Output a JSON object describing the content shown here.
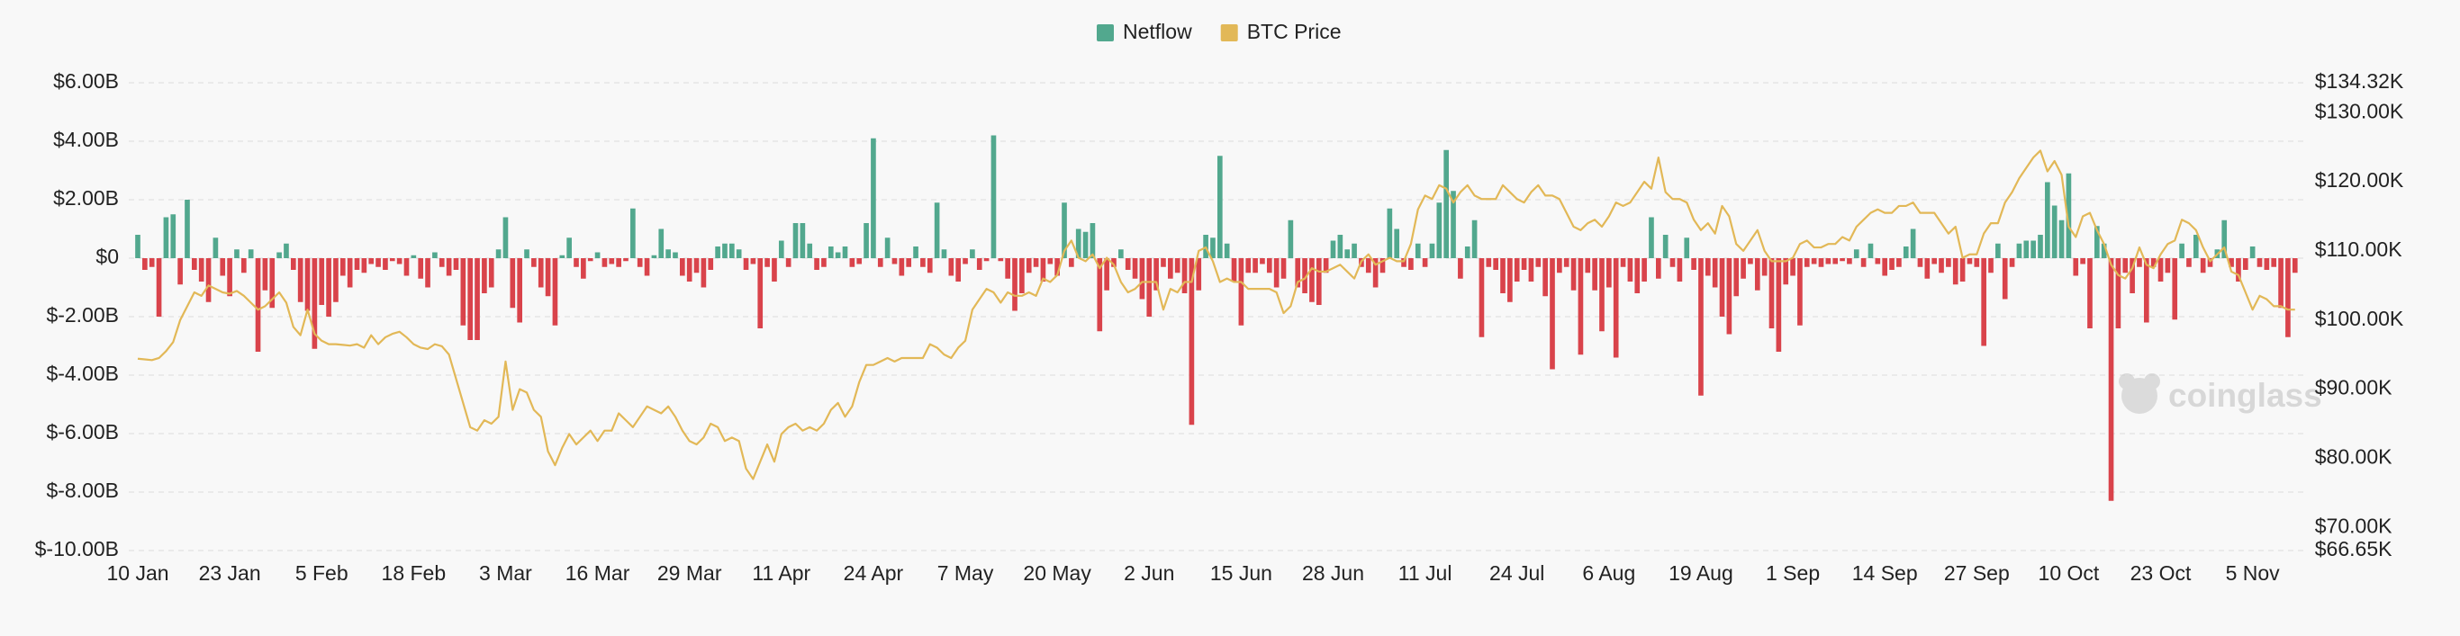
{
  "chart_data": {
    "type": "bar",
    "watermark": "coinglass",
    "grid": true,
    "categories": [
      "10 Jan",
      null,
      null,
      null,
      null,
      null,
      null,
      null,
      null,
      null,
      null,
      null,
      null,
      "23 Jan",
      null,
      null,
      null,
      null,
      null,
      null,
      null,
      null,
      null,
      null,
      null,
      null,
      "5 Feb",
      null,
      null,
      null,
      null,
      null,
      null,
      null,
      null,
      null,
      null,
      null,
      null,
      "18 Feb",
      null,
      null,
      null,
      null,
      null,
      null,
      null,
      null,
      null,
      null,
      null,
      null,
      "3 Mar",
      null,
      null,
      null,
      null,
      null,
      null,
      null,
      null,
      null,
      null,
      null,
      null,
      "16 Mar",
      null,
      null,
      null,
      null,
      null,
      null,
      null,
      null,
      null,
      null,
      null,
      null,
      "29 Mar",
      null,
      null,
      null,
      null,
      null,
      null,
      null,
      null,
      null,
      null,
      null,
      null,
      "11 Apr",
      null,
      null,
      null,
      null,
      null,
      null,
      null,
      null,
      null,
      null,
      null,
      null,
      "24 Apr",
      null,
      null,
      null,
      null,
      null,
      null,
      null,
      null,
      null,
      null,
      null,
      null,
      "7 May",
      null,
      null,
      null,
      null,
      null,
      null,
      null,
      null,
      null,
      null,
      null,
      null,
      "20 May",
      null,
      null,
      null,
      null,
      null,
      null,
      null,
      null,
      null,
      null,
      null,
      null,
      "2 Jun",
      null,
      null,
      null,
      null,
      null,
      null,
      null,
      null,
      null,
      null,
      null,
      null,
      "15 Jun",
      null,
      null,
      null,
      null,
      null,
      null,
      null,
      null,
      null,
      null,
      null,
      null,
      "28 Jun",
      null,
      null,
      null,
      null,
      null,
      null,
      null,
      null,
      null,
      null,
      null,
      null,
      "11 Jul",
      null,
      null,
      null,
      null,
      null,
      null,
      null,
      null,
      null,
      null,
      null,
      null,
      "24 Jul",
      null,
      null,
      null,
      null,
      null,
      null,
      null,
      null,
      null,
      null,
      null,
      null,
      "6 Aug",
      null,
      null,
      null,
      null,
      null,
      null,
      null,
      null,
      null,
      null,
      null,
      null,
      "19 Aug",
      null,
      null,
      null,
      null,
      null,
      null,
      null,
      null,
      null,
      null,
      null,
      null,
      "1 Sep",
      null,
      null,
      null,
      null,
      null,
      null,
      null,
      null,
      null,
      null,
      null,
      null,
      "14 Sep",
      null,
      null,
      null,
      null,
      null,
      null,
      null,
      null,
      null,
      null,
      null,
      null,
      "27 Sep",
      null,
      null,
      null,
      null,
      null,
      null,
      null,
      null,
      null,
      null,
      null,
      null,
      "10 Oct",
      null,
      null,
      null,
      null,
      null,
      null,
      null,
      null,
      null,
      null,
      null,
      null,
      "23 Oct",
      null,
      null,
      null,
      null,
      null,
      null,
      null,
      null,
      null,
      null,
      null,
      null,
      "5 Nov",
      null,
      null,
      null,
      null,
      null,
      null
    ],
    "series": [
      {
        "name": "Netflow",
        "type": "bar",
        "color": "#52a88e",
        "negative_color": "#d9434b",
        "values": [
          0.8,
          -0.4,
          -0.3,
          -2.0,
          1.4,
          1.5,
          -0.9,
          2.0,
          -0.4,
          -0.8,
          -1.5,
          0.7,
          -0.6,
          -1.3,
          0.3,
          -0.5,
          0.3,
          -3.2,
          -1.1,
          -1.7,
          0.2,
          0.5,
          -0.4,
          -1.5,
          -1.8,
          -3.1,
          -1.6,
          -2.0,
          -1.5,
          -0.6,
          -1.0,
          -0.4,
          -0.5,
          -0.2,
          -0.3,
          -0.4,
          -0.1,
          -0.2,
          -0.6,
          0.1,
          -0.7,
          -1.0,
          0.2,
          -0.3,
          -0.6,
          -0.4,
          -2.3,
          -2.8,
          -2.8,
          -1.2,
          -1.0,
          0.3,
          1.4,
          -1.7,
          -2.2,
          0.3,
          -0.3,
          -1.0,
          -1.3,
          -2.3,
          0.1,
          0.7,
          -0.3,
          -0.7,
          -0.1,
          0.2,
          -0.3,
          -0.2,
          -0.3,
          -0.1,
          1.7,
          -0.3,
          -0.6,
          0.1,
          1.0,
          0.3,
          0.2,
          -0.6,
          -0.8,
          -0.5,
          -1.0,
          -0.4,
          0.4,
          0.5,
          0.5,
          0.3,
          -0.4,
          -0.2,
          -2.4,
          -0.3,
          -0.8,
          0.6,
          -0.3,
          1.2,
          1.2,
          0.5,
          -0.4,
          -0.3,
          0.4,
          0.2,
          0.4,
          -0.3,
          -0.2,
          1.2,
          4.1,
          -0.3,
          0.7,
          -0.2,
          -0.6,
          -0.3,
          0.4,
          -0.3,
          -0.5,
          1.9,
          0.3,
          -0.6,
          -0.8,
          -0.2,
          0.3,
          -0.4,
          -0.1,
          4.2,
          -0.1,
          -0.7,
          -1.8,
          -1.2,
          -0.5,
          -0.3,
          -0.8,
          -0.2,
          -0.6,
          1.9,
          -0.3,
          1.0,
          0.9,
          1.2,
          -2.5,
          -1.1,
          -0.3,
          0.3,
          -0.4,
          -0.7,
          -1.4,
          -2.0,
          -1.1,
          -0.3,
          -0.7,
          -0.5,
          -1.2,
          -5.7,
          -1.1,
          0.8,
          0.7,
          3.5,
          0.5,
          -0.8,
          -2.3,
          -0.5,
          -0.5,
          -0.2,
          -0.5,
          -1.0,
          -0.7,
          1.3,
          -1.0,
          -1.2,
          -1.5,
          -1.6,
          -0.5,
          0.6,
          0.8,
          0.3,
          0.5,
          -0.3,
          -0.5,
          -1.0,
          -0.5,
          1.7,
          1.0,
          -0.3,
          -0.4,
          0.5,
          -0.3,
          0.5,
          1.9,
          3.7,
          2.3,
          -0.7,
          0.4,
          1.3,
          -2.7,
          -0.3,
          -0.4,
          -1.2,
          -1.5,
          -0.8,
          -0.4,
          -0.8,
          -0.3,
          -1.3,
          -3.8,
          -0.5,
          -0.3,
          -1.1,
          -3.3,
          -0.5,
          -1.1,
          -2.5,
          -1.0,
          -3.4,
          -0.3,
          -0.8,
          -1.2,
          -0.8,
          1.4,
          -0.7,
          0.8,
          -0.3,
          -0.8,
          0.7,
          -0.4,
          -4.7,
          -0.6,
          -1.0,
          -2.0,
          -2.6,
          -1.3,
          -0.7,
          -0.2,
          -1.1,
          -0.6,
          -2.4,
          -3.2,
          -0.9,
          -0.6,
          -2.3,
          -0.3,
          -0.2,
          -0.3,
          -0.2,
          -0.2,
          -0.1,
          -0.2,
          0.3,
          -0.3,
          0.5,
          -0.2,
          -0.6,
          -0.4,
          -0.3,
          0.4,
          1.0,
          -0.3,
          -0.7,
          -0.2,
          -0.5,
          -0.3,
          -0.9,
          -0.8,
          -0.2,
          -0.3,
          -3.0,
          -0.5,
          0.5,
          -1.4,
          -0.3,
          0.5,
          0.6,
          0.6,
          0.8,
          2.6,
          1.8,
          1.3,
          2.9,
          -0.6,
          -0.2,
          -2.4,
          1.1,
          0.5,
          -8.3,
          -2.4,
          -0.5,
          -1.2,
          -0.3,
          -2.2,
          -0.3,
          -0.8,
          -0.5,
          -2.1,
          0.5,
          -0.3,
          0.8,
          -0.5,
          -0.3,
          0.3,
          1.3,
          -0.3,
          -0.8,
          -0.4,
          0.4,
          -0.3,
          -0.4,
          -0.3,
          -1.7,
          -2.7,
          -0.5
        ]
      },
      {
        "name": "BTC Price",
        "type": "line",
        "axis": "y2",
        "color": "#e2b857",
        "values": [
          94.4,
          94.3,
          94.2,
          94.5,
          95.5,
          96.8,
          100.0,
          102.0,
          104.0,
          103.5,
          105.0,
          104.5,
          104.0,
          103.8,
          104.2,
          103.5,
          102.5,
          101.5,
          102.0,
          103.0,
          104.0,
          102.5,
          99.0,
          97.8,
          101.5,
          98.0,
          97.0,
          96.5,
          96.5,
          96.4,
          96.3,
          96.5,
          96.0,
          97.8,
          96.5,
          97.5,
          98.0,
          98.3,
          97.5,
          96.5,
          96.0,
          95.8,
          96.5,
          96.2,
          95.0,
          91.5,
          88.0,
          84.5,
          84.0,
          85.5,
          85.0,
          86.0,
          94.0,
          87.0,
          90.0,
          89.5,
          87.0,
          86.0,
          81.0,
          79.0,
          81.5,
          83.5,
          82.0,
          83.0,
          84.0,
          82.5,
          84.0,
          84.0,
          86.5,
          85.5,
          84.5,
          86.0,
          87.5,
          87.0,
          86.5,
          87.5,
          86.0,
          84.0,
          82.5,
          82.0,
          83.0,
          85.0,
          84.5,
          82.5,
          83.0,
          82.5,
          78.5,
          77.0,
          79.5,
          82.0,
          79.5,
          83.5,
          84.5,
          85.0,
          84.0,
          84.5,
          84.0,
          85.0,
          87.0,
          88.0,
          86.0,
          87.5,
          91.0,
          93.5,
          93.5,
          94.0,
          94.5,
          94.0,
          94.5,
          94.5,
          94.5,
          94.5,
          96.5,
          96.0,
          95.0,
          94.5,
          96.0,
          97.0,
          101.5,
          103.0,
          104.5,
          104.0,
          102.5,
          104.0,
          103.5,
          103.5,
          104.0,
          103.5,
          106.0,
          105.5,
          106.5,
          110.0,
          111.5,
          109.0,
          108.5,
          109.5,
          107.5,
          109.0,
          108.0,
          105.5,
          104.0,
          104.5,
          105.5,
          105.5,
          105.5,
          101.5,
          104.5,
          104.0,
          105.5,
          105.5,
          110.0,
          110.5,
          108.5,
          105.5,
          106.0,
          105.5,
          105.5,
          104.5,
          104.5,
          104.5,
          104.5,
          104.0,
          101.0,
          102.0,
          105.5,
          106.0,
          107.5,
          107.0,
          107.0,
          107.5,
          108.0,
          107.0,
          106.0,
          108.5,
          109.5,
          108.0,
          108.5,
          109.0,
          108.5,
          108.5,
          111.0,
          116.0,
          118.0,
          117.5,
          119.5,
          119.0,
          117.0,
          118.5,
          119.5,
          118.0,
          117.5,
          117.5,
          117.5,
          119.5,
          118.5,
          117.5,
          117.0,
          118.5,
          119.5,
          118.0,
          118.0,
          117.5,
          115.5,
          113.5,
          113.0,
          114.0,
          114.5,
          113.5,
          115.0,
          117.0,
          116.5,
          117.0,
          118.5,
          120.0,
          119.0,
          123.5,
          118.5,
          117.5,
          117.5,
          117.0,
          114.5,
          113.0,
          114.0,
          112.5,
          116.5,
          115.0,
          111.0,
          110.0,
          111.5,
          113.0,
          110.0,
          108.5,
          108.5,
          108.5,
          109.0,
          111.0,
          111.5,
          110.5,
          110.5,
          111.0,
          111.0,
          112.0,
          111.5,
          113.5,
          114.5,
          115.5,
          116.0,
          115.5,
          115.5,
          116.5,
          116.5,
          117.0,
          115.5,
          115.5,
          115.5,
          114.0,
          112.5,
          113.5,
          109.0,
          109.5,
          109.5,
          112.5,
          114.0,
          114.0,
          117.0,
          118.5,
          120.5,
          122.0,
          123.5,
          124.5,
          121.5,
          123.0,
          121.0,
          113.5,
          112.0,
          115.0,
          115.5,
          113.0,
          111.0,
          108.0,
          106.5,
          106.0,
          107.5,
          110.5,
          108.0,
          107.5,
          109.5,
          111.0,
          111.5,
          114.5,
          114.0,
          113.0,
          110.5,
          108.5,
          109.5,
          110.5,
          107.0,
          106.5,
          104.0,
          101.5,
          103.5,
          103.0,
          102.0,
          102.0,
          101.5,
          101.5
        ]
      }
    ],
    "ylim": [
      -10,
      6
    ],
    "yticks": [
      {
        "value": -10,
        "label": "$-10.00B"
      },
      {
        "value": -8,
        "label": "$-8.00B"
      },
      {
        "value": -6,
        "label": "$-6.00B"
      },
      {
        "value": -4,
        "label": "$-4.00B"
      },
      {
        "value": -2,
        "label": "$-2.00B"
      },
      {
        "value": 0,
        "label": "$0"
      },
      {
        "value": 2,
        "label": "$2.00B"
      },
      {
        "value": 4,
        "label": "$4.00B"
      },
      {
        "value": 6,
        "label": "$6.00B"
      }
    ],
    "y2lim": [
      66.65,
      134.32
    ],
    "y2ticks": [
      {
        "value": 66.65,
        "label": "$66.65K"
      },
      {
        "value": 70,
        "label": "$70.00K"
      },
      {
        "value": 80,
        "label": "$80.00K"
      },
      {
        "value": 90,
        "label": "$90.00K"
      },
      {
        "value": 100,
        "label": "$100.00K"
      },
      {
        "value": 110,
        "label": "$110.00K"
      },
      {
        "value": 120,
        "label": "$120.00K"
      },
      {
        "value": 130,
        "label": "$130.00K"
      },
      {
        "value": 134.32,
        "label": "$134.32K"
      }
    ]
  }
}
